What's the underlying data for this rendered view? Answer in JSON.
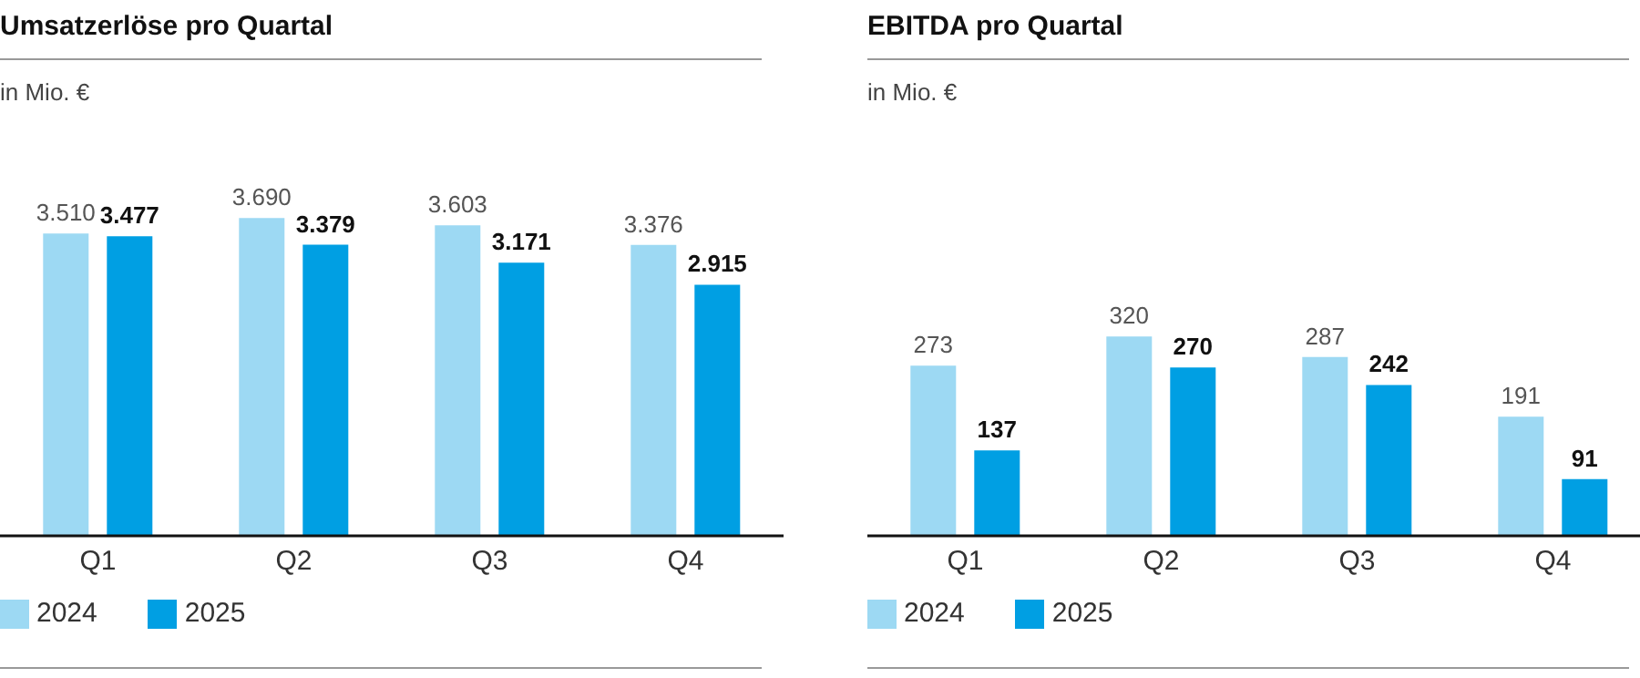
{
  "chart_data": [
    {
      "type": "bar",
      "title": "Umsatzerlöse pro Quartal",
      "subtitle": "in Mio. €",
      "categories": [
        "Q1",
        "Q2",
        "Q3",
        "Q4"
      ],
      "legend": "bottom left",
      "series": [
        {
          "name": "2024",
          "color": "#9dd9f3",
          "values": [
            3510,
            3690,
            3603,
            3376
          ],
          "value_labels": [
            "3.510",
            "3.690",
            "3.603",
            "3.376"
          ]
        },
        {
          "name": "2025",
          "color": "#009fe3",
          "values": [
            3477,
            3379,
            3171,
            2915
          ],
          "value_labels": [
            "3.477",
            "3.379",
            "3.171",
            "2.915"
          ]
        }
      ]
    },
    {
      "type": "bar",
      "title": "EBITDA pro Quartal",
      "subtitle": "in Mio. €",
      "categories": [
        "Q1",
        "Q2",
        "Q3",
        "Q4"
      ],
      "legend": "bottom left",
      "series": [
        {
          "name": "2024",
          "color": "#9dd9f3",
          "values": [
            273,
            320,
            287,
            191
          ],
          "value_labels": [
            "273",
            "320",
            "287",
            "191"
          ]
        },
        {
          "name": "2025",
          "color": "#009fe3",
          "values": [
            137,
            270,
            242,
            91
          ],
          "value_labels": [
            "137",
            "270",
            "242",
            "91"
          ]
        }
      ]
    }
  ]
}
